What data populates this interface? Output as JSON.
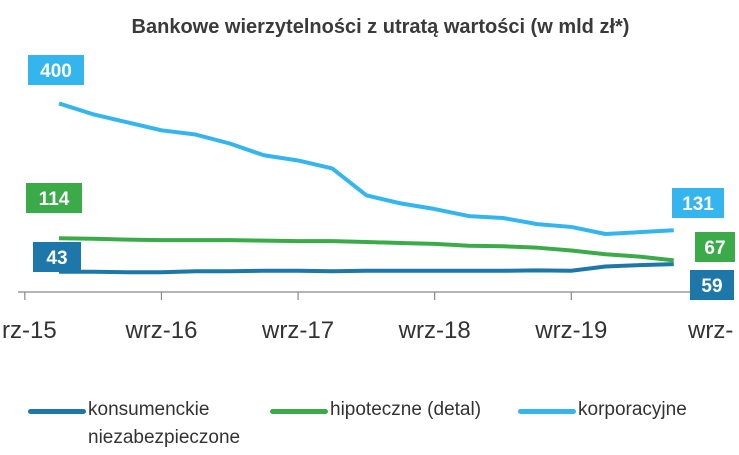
{
  "chart_data": {
    "type": "line",
    "title": "Bankowe wierzytelności z utratą wartości (w mld zł*)",
    "xticks": [
      {
        "value": -1,
        "label": "rz-15"
      },
      {
        "value": 3,
        "label": "wrz-16"
      },
      {
        "value": 7,
        "label": "wrz-17"
      },
      {
        "value": 11,
        "label": "wrz-18"
      },
      {
        "value": 15,
        "label": "wrz-19"
      },
      {
        "value": 19,
        "label": "wrz-"
      }
    ],
    "xlim": [
      -1.2,
      19.5
    ],
    "ylim": [
      0,
      420
    ],
    "series": [
      {
        "name": "konsumenckie niezabezpieczone",
        "color": "#1d77a8",
        "values": [
          43,
          43,
          42,
          42,
          44,
          44,
          45,
          45,
          44,
          45,
          45,
          45,
          45,
          45,
          46,
          45,
          54,
          57,
          59
        ]
      },
      {
        "name": "hipoteczne (detal)",
        "color": "#3bab49",
        "values": [
          114,
          113,
          111,
          110,
          110,
          110,
          109,
          108,
          108,
          106,
          104,
          102,
          98,
          97,
          94,
          88,
          80,
          75,
          67
        ]
      },
      {
        "name": "korporacyjne",
        "color": "#35b5ee",
        "values": [
          400,
          377,
          360,
          343,
          334,
          315,
          290,
          279,
          262,
          205,
          188,
          176,
          161,
          157,
          144,
          138,
          123,
          127,
          131
        ]
      }
    ]
  }
}
